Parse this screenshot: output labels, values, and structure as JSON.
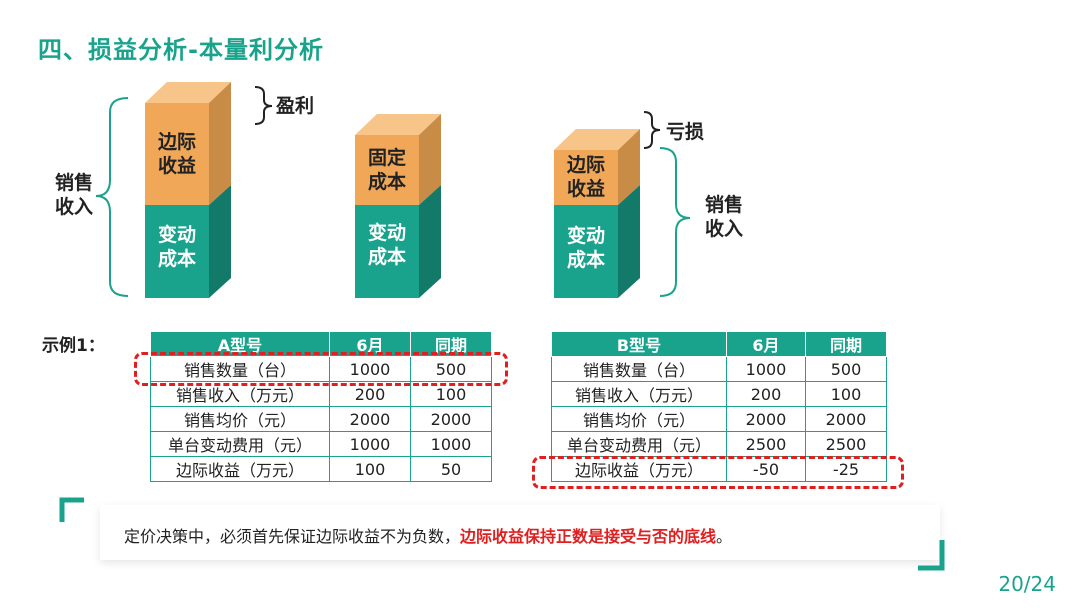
{
  "title": "四、损益分析-本量利分析",
  "diagram": {
    "left_brace_label": [
      "销售",
      "收入"
    ],
    "profit_label": "盈利",
    "loss_label": "亏损",
    "right_brace_label": [
      "销售",
      "收入"
    ],
    "col1": {
      "top": [
        "边际",
        "收益"
      ],
      "bottom": [
        "变动",
        "成本"
      ]
    },
    "col2": {
      "top": [
        "固定",
        "成本"
      ],
      "bottom": [
        "变动",
        "成本"
      ]
    },
    "col3": {
      "top": [
        "边际",
        "收益"
      ],
      "bottom": [
        "变动",
        "成本"
      ]
    }
  },
  "example_label": "示例1：",
  "table_a": {
    "headers": [
      "A型号",
      "6月",
      "同期"
    ],
    "rows": [
      [
        "销售数量（台）",
        "1000",
        "500"
      ],
      [
        "销售收入（万元）",
        "200",
        "100"
      ],
      [
        "销售均价（元）",
        "2000",
        "2000"
      ],
      [
        "单台变动费用（元）",
        "1000",
        "1000"
      ],
      [
        "边际收益（万元）",
        "100",
        "50"
      ]
    ]
  },
  "table_b": {
    "headers": [
      "B型号",
      "6月",
      "同期"
    ],
    "rows": [
      [
        "销售数量（台）",
        "1000",
        "500"
      ],
      [
        "销售收入（万元）",
        "200",
        "100"
      ],
      [
        "销售均价（元）",
        "2000",
        "2000"
      ],
      [
        "单台变动费用（元）",
        "2500",
        "2500"
      ],
      [
        "边际收益（万元）",
        "-50",
        "-25"
      ]
    ]
  },
  "note": {
    "normal": "定价决策中，必须首先保证边际收益不为负数，",
    "highlight": "边际收益保持正数是接受与否的底线",
    "end": "。"
  },
  "page_number": "20/24",
  "colors": {
    "accent": "#1aa38c",
    "orange": "#f0a858",
    "red": "#e02020"
  }
}
